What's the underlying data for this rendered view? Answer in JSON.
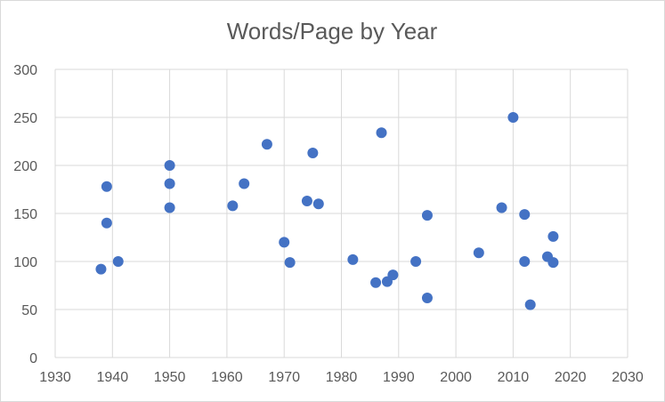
{
  "chart_data": {
    "type": "scatter",
    "title": "Words/Page by Year",
    "xlabel": "",
    "ylabel": "",
    "xlim": [
      1930,
      2030
    ],
    "ylim": [
      0,
      300
    ],
    "x_ticks": [
      1930,
      1940,
      1950,
      1960,
      1970,
      1980,
      1990,
      2000,
      2010,
      2020,
      2030
    ],
    "y_ticks": [
      0,
      50,
      100,
      150,
      200,
      250,
      300
    ],
    "grid": true,
    "legend": "none",
    "marker_color": "#4472c4",
    "points": [
      {
        "x": 1938,
        "y": 92
      },
      {
        "x": 1939,
        "y": 178
      },
      {
        "x": 1939,
        "y": 140
      },
      {
        "x": 1941,
        "y": 100
      },
      {
        "x": 1950,
        "y": 200
      },
      {
        "x": 1950,
        "y": 181
      },
      {
        "x": 1950,
        "y": 156
      },
      {
        "x": 1961,
        "y": 158
      },
      {
        "x": 1963,
        "y": 181
      },
      {
        "x": 1967,
        "y": 222
      },
      {
        "x": 1970,
        "y": 120
      },
      {
        "x": 1971,
        "y": 99
      },
      {
        "x": 1974,
        "y": 163
      },
      {
        "x": 1975,
        "y": 213
      },
      {
        "x": 1976,
        "y": 160
      },
      {
        "x": 1982,
        "y": 102
      },
      {
        "x": 1986,
        "y": 78
      },
      {
        "x": 1987,
        "y": 234
      },
      {
        "x": 1988,
        "y": 79
      },
      {
        "x": 1989,
        "y": 86
      },
      {
        "x": 1993,
        "y": 100
      },
      {
        "x": 1995,
        "y": 148
      },
      {
        "x": 1995,
        "y": 62
      },
      {
        "x": 2004,
        "y": 109
      },
      {
        "x": 2008,
        "y": 156
      },
      {
        "x": 2010,
        "y": 250
      },
      {
        "x": 2012,
        "y": 149
      },
      {
        "x": 2012,
        "y": 100
      },
      {
        "x": 2013,
        "y": 55
      },
      {
        "x": 2016,
        "y": 105
      },
      {
        "x": 2017,
        "y": 126
      },
      {
        "x": 2017,
        "y": 99
      }
    ]
  }
}
